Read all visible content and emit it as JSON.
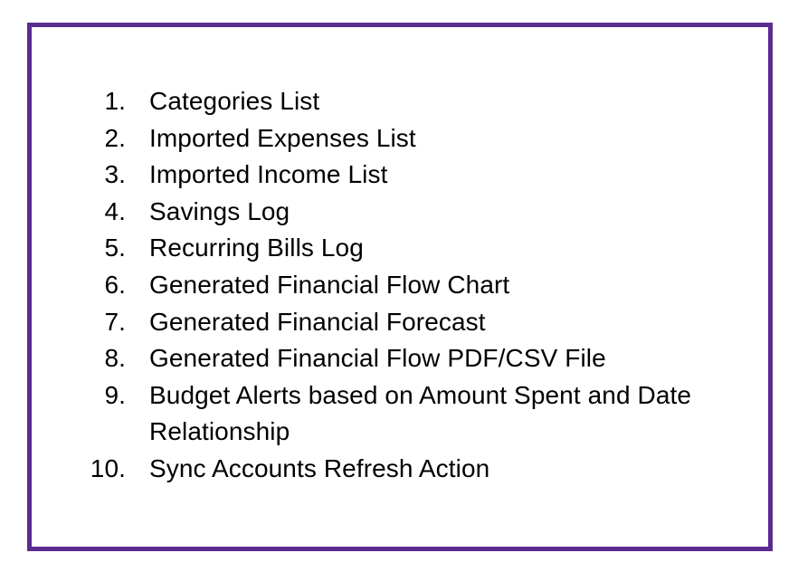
{
  "list": {
    "items": [
      {
        "number": "1.",
        "text": "Categories List"
      },
      {
        "number": "2.",
        "text": "Imported Expenses List"
      },
      {
        "number": "3.",
        "text": "Imported Income List"
      },
      {
        "number": "4.",
        "text": "Savings Log"
      },
      {
        "number": "5.",
        "text": "Recurring Bills Log"
      },
      {
        "number": "6.",
        "text": "Generated Financial Flow Chart"
      },
      {
        "number": "7.",
        "text": "Generated Financial Forecast"
      },
      {
        "number": "8.",
        "text": "Generated Financial Flow PDF/CSV File"
      },
      {
        "number": "9.",
        "text": "Budget Alerts based on Amount Spent and Date Relationship"
      },
      {
        "number": "10.",
        "text": "Sync Accounts Refresh Action"
      }
    ]
  },
  "colors": {
    "border": "#5b2c8f",
    "text": "#000000",
    "background": "#ffffff"
  }
}
